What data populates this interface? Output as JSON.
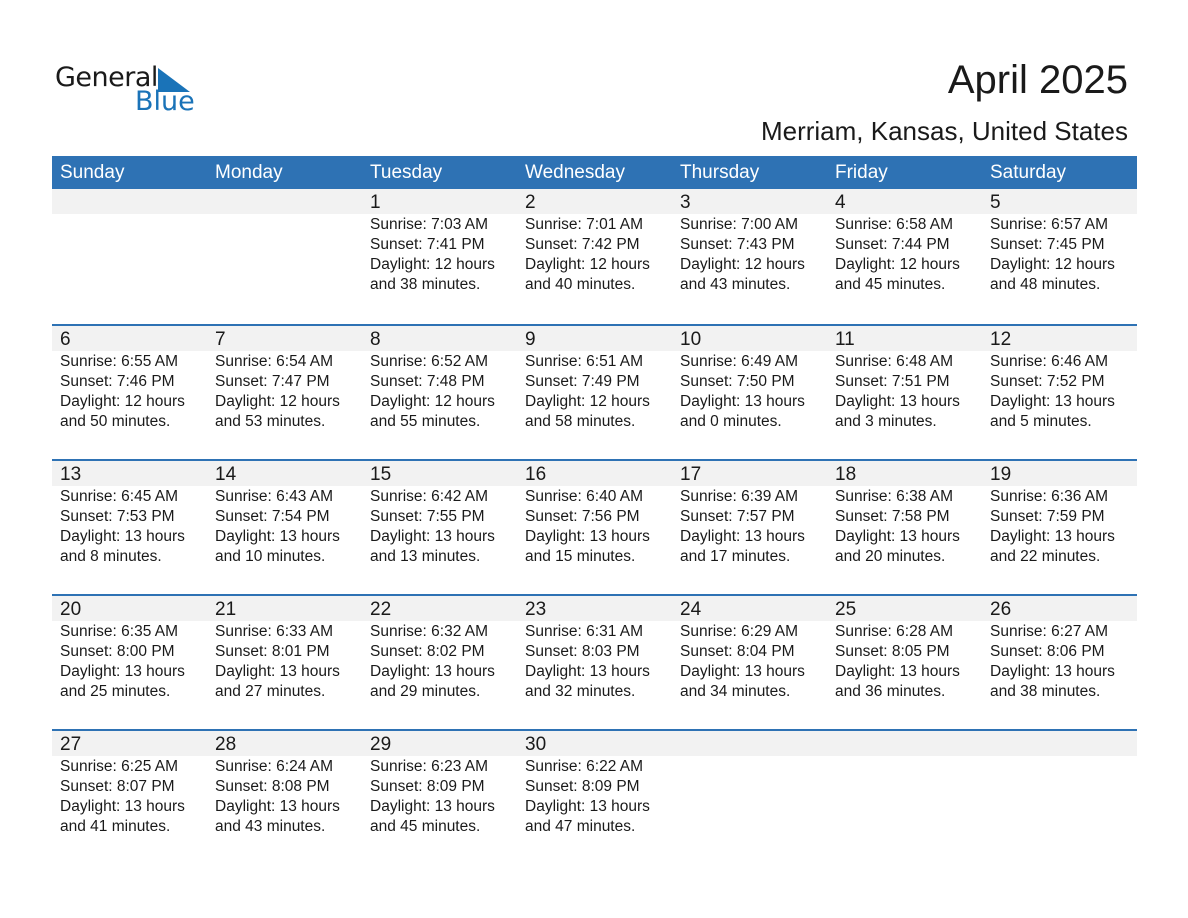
{
  "logo": {
    "text1": "General",
    "text2": "Blue"
  },
  "header": {
    "title": "April 2025",
    "location": "Merriam, Kansas, United States"
  },
  "colors": {
    "accent": "#2e72b4",
    "band": "#f2f2f2"
  },
  "weekdays": [
    "Sunday",
    "Monday",
    "Tuesday",
    "Wednesday",
    "Thursday",
    "Friday",
    "Saturday"
  ],
  "weeks": [
    [
      null,
      null,
      {
        "day": "1",
        "sunrise": "Sunrise: 7:03 AM",
        "sunset": "Sunset: 7:41 PM",
        "daylight1": "Daylight: 12 hours",
        "daylight2": "and 38 minutes."
      },
      {
        "day": "2",
        "sunrise": "Sunrise: 7:01 AM",
        "sunset": "Sunset: 7:42 PM",
        "daylight1": "Daylight: 12 hours",
        "daylight2": "and 40 minutes."
      },
      {
        "day": "3",
        "sunrise": "Sunrise: 7:00 AM",
        "sunset": "Sunset: 7:43 PM",
        "daylight1": "Daylight: 12 hours",
        "daylight2": "and 43 minutes."
      },
      {
        "day": "4",
        "sunrise": "Sunrise: 6:58 AM",
        "sunset": "Sunset: 7:44 PM",
        "daylight1": "Daylight: 12 hours",
        "daylight2": "and 45 minutes."
      },
      {
        "day": "5",
        "sunrise": "Sunrise: 6:57 AM",
        "sunset": "Sunset: 7:45 PM",
        "daylight1": "Daylight: 12 hours",
        "daylight2": "and 48 minutes."
      }
    ],
    [
      {
        "day": "6",
        "sunrise": "Sunrise: 6:55 AM",
        "sunset": "Sunset: 7:46 PM",
        "daylight1": "Daylight: 12 hours",
        "daylight2": "and 50 minutes."
      },
      {
        "day": "7",
        "sunrise": "Sunrise: 6:54 AM",
        "sunset": "Sunset: 7:47 PM",
        "daylight1": "Daylight: 12 hours",
        "daylight2": "and 53 minutes."
      },
      {
        "day": "8",
        "sunrise": "Sunrise: 6:52 AM",
        "sunset": "Sunset: 7:48 PM",
        "daylight1": "Daylight: 12 hours",
        "daylight2": "and 55 minutes."
      },
      {
        "day": "9",
        "sunrise": "Sunrise: 6:51 AM",
        "sunset": "Sunset: 7:49 PM",
        "daylight1": "Daylight: 12 hours",
        "daylight2": "and 58 minutes."
      },
      {
        "day": "10",
        "sunrise": "Sunrise: 6:49 AM",
        "sunset": "Sunset: 7:50 PM",
        "daylight1": "Daylight: 13 hours",
        "daylight2": "and 0 minutes."
      },
      {
        "day": "11",
        "sunrise": "Sunrise: 6:48 AM",
        "sunset": "Sunset: 7:51 PM",
        "daylight1": "Daylight: 13 hours",
        "daylight2": "and 3 minutes."
      },
      {
        "day": "12",
        "sunrise": "Sunrise: 6:46 AM",
        "sunset": "Sunset: 7:52 PM",
        "daylight1": "Daylight: 13 hours",
        "daylight2": "and 5 minutes."
      }
    ],
    [
      {
        "day": "13",
        "sunrise": "Sunrise: 6:45 AM",
        "sunset": "Sunset: 7:53 PM",
        "daylight1": "Daylight: 13 hours",
        "daylight2": "and 8 minutes."
      },
      {
        "day": "14",
        "sunrise": "Sunrise: 6:43 AM",
        "sunset": "Sunset: 7:54 PM",
        "daylight1": "Daylight: 13 hours",
        "daylight2": "and 10 minutes."
      },
      {
        "day": "15",
        "sunrise": "Sunrise: 6:42 AM",
        "sunset": "Sunset: 7:55 PM",
        "daylight1": "Daylight: 13 hours",
        "daylight2": "and 13 minutes."
      },
      {
        "day": "16",
        "sunrise": "Sunrise: 6:40 AM",
        "sunset": "Sunset: 7:56 PM",
        "daylight1": "Daylight: 13 hours",
        "daylight2": "and 15 minutes."
      },
      {
        "day": "17",
        "sunrise": "Sunrise: 6:39 AM",
        "sunset": "Sunset: 7:57 PM",
        "daylight1": "Daylight: 13 hours",
        "daylight2": "and 17 minutes."
      },
      {
        "day": "18",
        "sunrise": "Sunrise: 6:38 AM",
        "sunset": "Sunset: 7:58 PM",
        "daylight1": "Daylight: 13 hours",
        "daylight2": "and 20 minutes."
      },
      {
        "day": "19",
        "sunrise": "Sunrise: 6:36 AM",
        "sunset": "Sunset: 7:59 PM",
        "daylight1": "Daylight: 13 hours",
        "daylight2": "and 22 minutes."
      }
    ],
    [
      {
        "day": "20",
        "sunrise": "Sunrise: 6:35 AM",
        "sunset": "Sunset: 8:00 PM",
        "daylight1": "Daylight: 13 hours",
        "daylight2": "and 25 minutes."
      },
      {
        "day": "21",
        "sunrise": "Sunrise: 6:33 AM",
        "sunset": "Sunset: 8:01 PM",
        "daylight1": "Daylight: 13 hours",
        "daylight2": "and 27 minutes."
      },
      {
        "day": "22",
        "sunrise": "Sunrise: 6:32 AM",
        "sunset": "Sunset: 8:02 PM",
        "daylight1": "Daylight: 13 hours",
        "daylight2": "and 29 minutes."
      },
      {
        "day": "23",
        "sunrise": "Sunrise: 6:31 AM",
        "sunset": "Sunset: 8:03 PM",
        "daylight1": "Daylight: 13 hours",
        "daylight2": "and 32 minutes."
      },
      {
        "day": "24",
        "sunrise": "Sunrise: 6:29 AM",
        "sunset": "Sunset: 8:04 PM",
        "daylight1": "Daylight: 13 hours",
        "daylight2": "and 34 minutes."
      },
      {
        "day": "25",
        "sunrise": "Sunrise: 6:28 AM",
        "sunset": "Sunset: 8:05 PM",
        "daylight1": "Daylight: 13 hours",
        "daylight2": "and 36 minutes."
      },
      {
        "day": "26",
        "sunrise": "Sunrise: 6:27 AM",
        "sunset": "Sunset: 8:06 PM",
        "daylight1": "Daylight: 13 hours",
        "daylight2": "and 38 minutes."
      }
    ],
    [
      {
        "day": "27",
        "sunrise": "Sunrise: 6:25 AM",
        "sunset": "Sunset: 8:07 PM",
        "daylight1": "Daylight: 13 hours",
        "daylight2": "and 41 minutes."
      },
      {
        "day": "28",
        "sunrise": "Sunrise: 6:24 AM",
        "sunset": "Sunset: 8:08 PM",
        "daylight1": "Daylight: 13 hours",
        "daylight2": "and 43 minutes."
      },
      {
        "day": "29",
        "sunrise": "Sunrise: 6:23 AM",
        "sunset": "Sunset: 8:09 PM",
        "daylight1": "Daylight: 13 hours",
        "daylight2": "and 45 minutes."
      },
      {
        "day": "30",
        "sunrise": "Sunrise: 6:22 AM",
        "sunset": "Sunset: 8:09 PM",
        "daylight1": "Daylight: 13 hours",
        "daylight2": "and 47 minutes."
      },
      null,
      null,
      null
    ]
  ]
}
